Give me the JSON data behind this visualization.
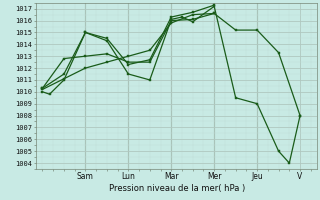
{
  "background_color": "#c8eae4",
  "grid_color_major": "#b0c8c0",
  "grid_color_minor": "#c0dcd6",
  "line_color": "#1a5c1a",
  "marker_color": "#1a5c1a",
  "ylabel": "Pression niveau de la mer( hPa )",
  "ylim": [
    1003.5,
    1017.5
  ],
  "yticks": [
    1004,
    1005,
    1006,
    1007,
    1008,
    1009,
    1010,
    1011,
    1012,
    1013,
    1014,
    1015,
    1016,
    1017
  ],
  "day_labels": [
    "Sam",
    "Lun",
    "Mar",
    "Mer",
    "Jeu",
    "V"
  ],
  "day_positions": [
    2.0,
    4.0,
    6.0,
    8.0,
    10.0,
    12.0
  ],
  "xlim": [
    -0.3,
    12.8
  ],
  "lines": [
    {
      "x": [
        0.0,
        0.33,
        1.0,
        2.0,
        3.0,
        4.0,
        5.0,
        6.0,
        6.5,
        7.0,
        8.0,
        9.0,
        10.0,
        11.0,
        11.5,
        12.0
      ],
      "y": [
        1010.0,
        1009.8,
        1011.0,
        1015.0,
        1014.3,
        1011.5,
        1011.0,
        1016.1,
        1016.3,
        1015.9,
        1017.2,
        1009.5,
        1009.0,
        1005.0,
        1004.0,
        1008.0
      ]
    },
    {
      "x": [
        0.0,
        1.0,
        2.0,
        3.0,
        4.0,
        5.0,
        6.0,
        7.0,
        8.0,
        9.0,
        10.0,
        11.0,
        12.0
      ],
      "y": [
        1010.2,
        1011.1,
        1012.0,
        1012.5,
        1013.0,
        1013.5,
        1015.8,
        1016.5,
        1016.6,
        1015.2,
        1015.2,
        1013.3,
        1008.0
      ]
    },
    {
      "x": [
        0.0,
        1.0,
        2.0,
        3.0,
        4.0,
        5.0,
        6.0,
        7.0,
        8.0
      ],
      "y": [
        1010.3,
        1011.5,
        1015.0,
        1014.5,
        1012.3,
        1012.7,
        1016.3,
        1016.7,
        1017.3
      ]
    },
    {
      "x": [
        0.0,
        1.0,
        2.0,
        3.0,
        4.0,
        5.0,
        6.0,
        7.0,
        8.0
      ],
      "y": [
        1010.3,
        1012.8,
        1013.0,
        1013.2,
        1012.5,
        1012.5,
        1016.0,
        1016.1,
        1016.6
      ]
    }
  ]
}
